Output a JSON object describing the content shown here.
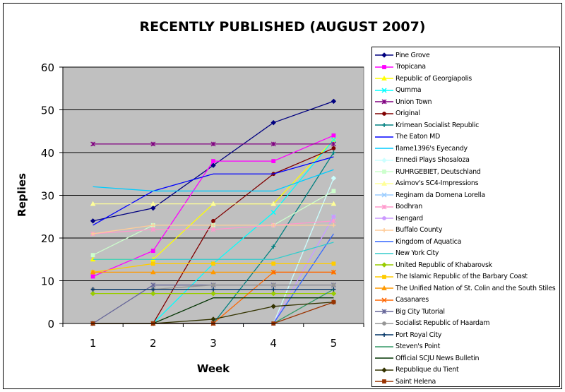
{
  "chart_data": {
    "type": "line",
    "title": "RECENTLY PUBLISHED (AUGUST 2007)",
    "xlabel": "Week",
    "ylabel": "Replies",
    "x": [
      1,
      2,
      3,
      4,
      5
    ],
    "ylim": [
      0,
      60
    ],
    "yticks": [
      0,
      10,
      20,
      30,
      40,
      50,
      60
    ],
    "grid": true,
    "legend_position": "right",
    "plot_background": "#c0c0c0",
    "series": [
      {
        "name": "Pine Grove",
        "color": "#000080",
        "marker": "diamond",
        "values": [
          24,
          27,
          37,
          47,
          52
        ]
      },
      {
        "name": "Tropicana",
        "color": "#ff00ff",
        "marker": "square",
        "values": [
          11,
          17,
          38,
          38,
          44
        ]
      },
      {
        "name": "Republic of Georgiapolis",
        "color": "#ffff00",
        "marker": "triangle",
        "values": [
          15,
          15,
          28,
          28,
          43
        ]
      },
      {
        "name": "Qumma",
        "color": "#00ffff",
        "marker": "x",
        "values": [
          0,
          0,
          14,
          26,
          43
        ]
      },
      {
        "name": "Union Town",
        "color": "#800080",
        "marker": "star",
        "values": [
          42,
          42,
          42,
          42,
          42
        ]
      },
      {
        "name": "Original",
        "color": "#800000",
        "marker": "circle",
        "values": [
          0,
          0,
          24,
          35,
          41
        ]
      },
      {
        "name": "Krimean Socialist Republic",
        "color": "#008080",
        "marker": "plus",
        "values": [
          0,
          0,
          0,
          18,
          40
        ]
      },
      {
        "name": "The Eaton MD",
        "color": "#0000ff",
        "marker": "none",
        "values": [
          23,
          31,
          35,
          35,
          39
        ]
      },
      {
        "name": "flame1396's Eyecandy",
        "color": "#00ccff",
        "marker": "none",
        "values": [
          32,
          31,
          31,
          31,
          36
        ]
      },
      {
        "name": "Ennedi Plays Shosaloza",
        "color": "#ccffff",
        "marker": "diamond",
        "values": [
          0,
          0,
          0,
          0,
          34
        ]
      },
      {
        "name": "RUHRGEBIET, Deutschland",
        "color": "#ccffcc",
        "marker": "square",
        "values": [
          16,
          23,
          23,
          23,
          31
        ]
      },
      {
        "name": "Asimov's SC4-Impressions",
        "color": "#ffff99",
        "marker": "triangle",
        "values": [
          28,
          28,
          28,
          28,
          28
        ]
      },
      {
        "name": "Reginam da Domena Lorella",
        "color": "#99ccff",
        "marker": "x",
        "values": [
          0,
          0,
          0,
          0,
          25
        ]
      },
      {
        "name": "Bodhran",
        "color": "#ff99cc",
        "marker": "star",
        "values": [
          21,
          22,
          22,
          23,
          24
        ]
      },
      {
        "name": "Isengard",
        "color": "#cc99ff",
        "marker": "circle",
        "values": [
          0,
          0,
          0,
          0,
          25
        ]
      },
      {
        "name": "Buffalo County",
        "color": "#ffcc99",
        "marker": "plus",
        "values": [
          21,
          23,
          23,
          23,
          23
        ]
      },
      {
        "name": "Kingdom of Aquatica",
        "color": "#3366ff",
        "marker": "none",
        "values": [
          0,
          0,
          0,
          0,
          21
        ]
      },
      {
        "name": "New York City",
        "color": "#33cccc",
        "marker": "none",
        "values": [
          15,
          15,
          15,
          15,
          19
        ]
      },
      {
        "name": "United Republic of Khabarovsk",
        "color": "#99cc00",
        "marker": "diamond",
        "values": [
          7,
          7,
          7,
          7,
          7
        ]
      },
      {
        "name": "The Islamic Republic of the Barbary Coast",
        "color": "#ffcc00",
        "marker": "square",
        "values": [
          12,
          14,
          14,
          14,
          14
        ]
      },
      {
        "name": "The Unified Nation of St. Colin and the South Stiles",
        "color": "#ff9900",
        "marker": "triangle",
        "values": [
          12,
          12,
          12,
          12,
          12
        ]
      },
      {
        "name": "Casanares",
        "color": "#ff6600",
        "marker": "x",
        "values": [
          0,
          0,
          0,
          12,
          12
        ]
      },
      {
        "name": "Big City Tutorial",
        "color": "#666699",
        "marker": "star",
        "values": [
          0,
          9,
          9,
          9,
          9
        ]
      },
      {
        "name": "Socialist Republic of Haardam",
        "color": "#969696",
        "marker": "circle",
        "values": [
          8,
          8,
          9,
          9,
          9
        ]
      },
      {
        "name": "Port Royal City",
        "color": "#003366",
        "marker": "plus",
        "values": [
          8,
          8,
          8,
          8,
          8
        ]
      },
      {
        "name": "Steven's Point",
        "color": "#339966",
        "marker": "none",
        "values": [
          0,
          0,
          0,
          0,
          8
        ]
      },
      {
        "name": "Official SCJU News Bulletin",
        "color": "#003300",
        "marker": "none",
        "values": [
          0,
          0,
          6,
          6,
          6
        ]
      },
      {
        "name": "Republique du Tient",
        "color": "#333300",
        "marker": "diamond",
        "values": [
          0,
          0,
          1,
          4,
          5
        ]
      },
      {
        "name": "Saint Helena",
        "color": "#993300",
        "marker": "square",
        "values": [
          0,
          0,
          0,
          0,
          5
        ]
      }
    ]
  }
}
